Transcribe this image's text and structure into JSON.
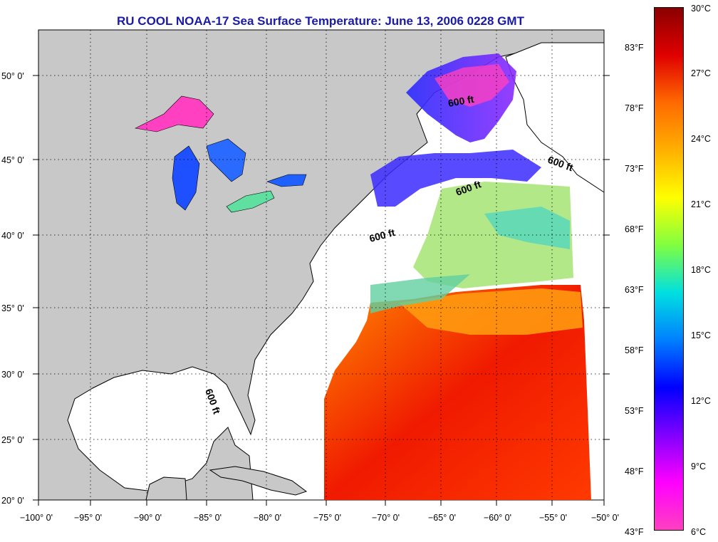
{
  "title": "RU COOL  NOAA-17  Sea Surface Temperature:  June 13, 2006 0228 GMT",
  "lon_labels": [
    "−100° 0'",
    "−95° 0'",
    "−90° 0'",
    "−85° 0'",
    "−80° 0'",
    "−75° 0'",
    "−70° 0'",
    "−65° 0'",
    "−60° 0'",
    "−55° 0'",
    "−50° 0'"
  ],
  "lat_labels": [
    "20° 0'",
    "25° 0'",
    "30° 0'",
    "35° 0'",
    "40° 0'",
    "45° 0'",
    "50° 0'"
  ],
  "isobath_labels": [
    "600 ft",
    "600 ft",
    "600 ft",
    "600 ft",
    "600 ft"
  ],
  "colorbar": {
    "fahrenheit_labels": [
      "83°F",
      "78°F",
      "73°F",
      "68°F",
      "63°F",
      "58°F",
      "53°F",
      "48°F",
      "43°F"
    ],
    "celsius_labels": [
      "30°C",
      "27°C",
      "24°C",
      "21°C",
      "18°C",
      "15°C",
      "12°C",
      "9°C",
      "6°C"
    ],
    "colors": [
      "#8b0000",
      "#e00000",
      "#ff6a00",
      "#ffb000",
      "#ffff00",
      "#80ff40",
      "#00e0e0",
      "#0080ff",
      "#0000ff",
      "#8000ff",
      "#ff00ff",
      "#ff40c0"
    ]
  },
  "colors": {
    "land": "#c8c8c8",
    "no_data": "#ffffff",
    "title": "#1a1aa8",
    "grid": "#000000"
  }
}
